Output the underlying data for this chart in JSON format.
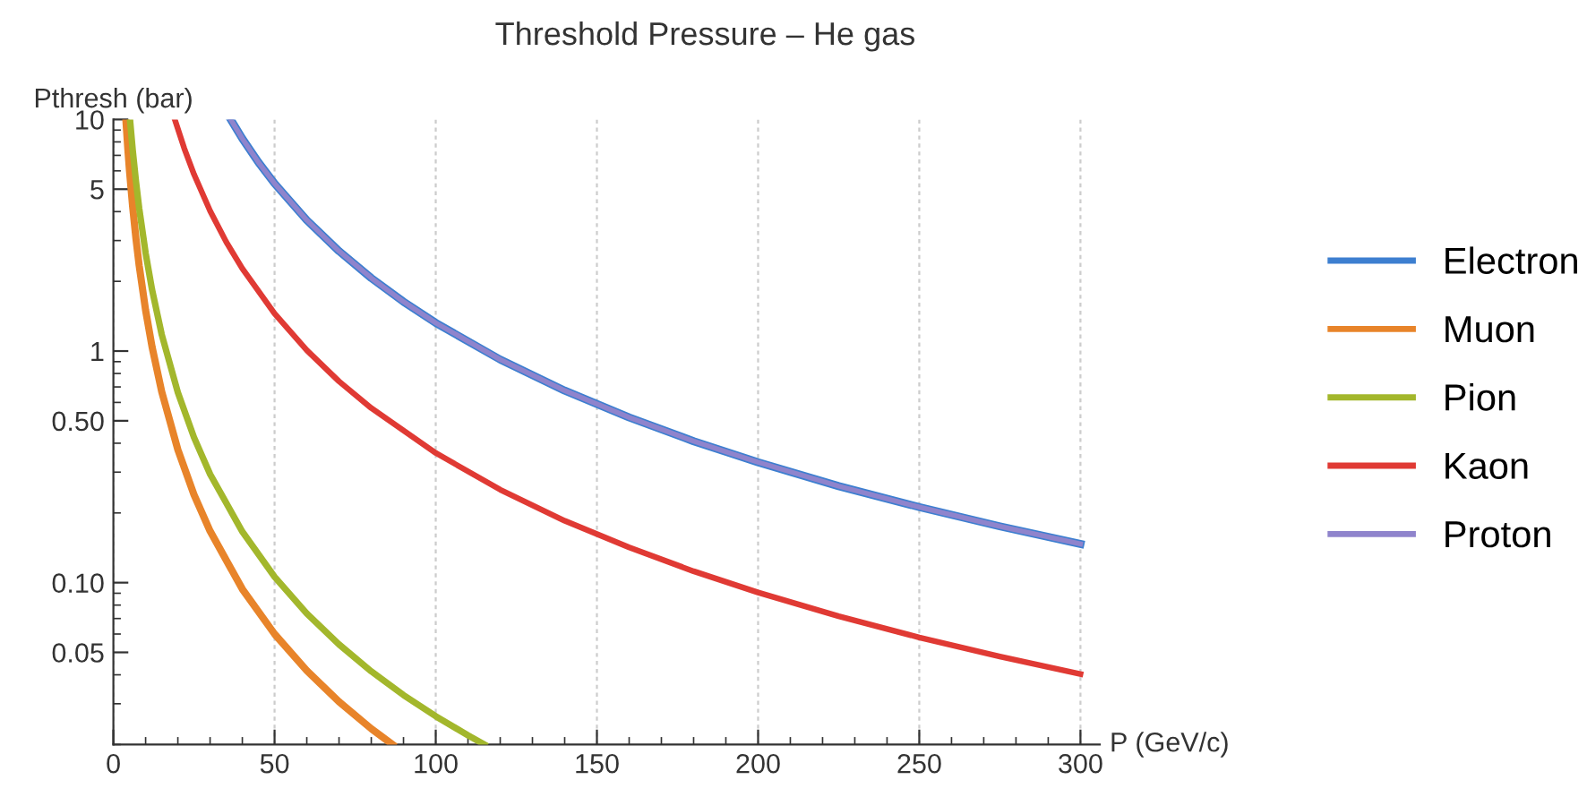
{
  "chart_data": {
    "type": "line",
    "title": "Threshold Pressure – He gas",
    "xlabel": "P (GeV/c)",
    "ylabel": "Pthresh (bar)",
    "log": "y",
    "grid": "x",
    "legend": "right",
    "marker": "none",
    "line_style": "solid",
    "xlim": [
      0,
      306
    ],
    "ylim": [
      0.02,
      10
    ],
    "xticks": [
      0,
      {
        "value": 10,
        "label": null
      },
      {
        "value": 20,
        "label": null
      },
      {
        "value": 30,
        "label": null
      },
      {
        "value": 40,
        "label": null
      },
      50,
      {
        "value": 60,
        "label": null
      },
      {
        "value": 70,
        "label": null
      },
      {
        "value": 80,
        "label": null
      },
      {
        "value": 90,
        "label": null
      },
      100,
      {
        "value": 110,
        "label": null
      },
      {
        "value": 120,
        "label": null
      },
      {
        "value": 130,
        "label": null
      },
      {
        "value": 140,
        "label": null
      },
      150,
      {
        "value": 160,
        "label": null
      },
      {
        "value": 170,
        "label": null
      },
      {
        "value": 180,
        "label": null
      },
      {
        "value": 190,
        "label": null
      },
      200,
      {
        "value": 210,
        "label": null
      },
      {
        "value": 220,
        "label": null
      },
      {
        "value": 230,
        "label": null
      },
      {
        "value": 240,
        "label": null
      },
      250,
      {
        "value": 260,
        "label": null
      },
      {
        "value": 270,
        "label": null
      },
      {
        "value": 280,
        "label": null
      },
      {
        "value": 290,
        "label": null
      },
      300
    ],
    "yticks": [
      {
        "value": 0.02,
        "label": null
      },
      {
        "value": 0.03,
        "label": null
      },
      {
        "value": 0.04,
        "label": null
      },
      {
        "value": 0.05,
        "label": "0.05"
      },
      {
        "value": 0.06,
        "label": null
      },
      {
        "value": 0.07,
        "label": null
      },
      {
        "value": 0.08,
        "label": null
      },
      {
        "value": 0.09,
        "label": null
      },
      {
        "value": 0.1,
        "label": "0.10"
      },
      {
        "value": 0.2,
        "label": null
      },
      {
        "value": 0.3,
        "label": null
      },
      {
        "value": 0.4,
        "label": null
      },
      {
        "value": 0.5,
        "label": "0.50"
      },
      {
        "value": 0.6,
        "label": null
      },
      {
        "value": 0.7,
        "label": null
      },
      {
        "value": 0.8,
        "label": null
      },
      {
        "value": 0.9,
        "label": null
      },
      1,
      {
        "value": 2,
        "label": null
      },
      {
        "value": 3,
        "label": null
      },
      {
        "value": 4,
        "label": null
      },
      5,
      {
        "value": 6,
        "label": null
      },
      {
        "value": 7,
        "label": null
      },
      {
        "value": 8,
        "label": null
      },
      {
        "value": 9,
        "label": null
      },
      10
    ],
    "series": [
      {
        "name": "Electron",
        "color": "#3d7fd0",
        "x": [
          36.4,
          40,
          45,
          50,
          60,
          70,
          80,
          90,
          100,
          120,
          140,
          160,
          180,
          200,
          225,
          250,
          275,
          300
        ],
        "values": [
          10.0,
          8.27,
          6.53,
          5.29,
          3.675,
          2.7,
          2.067,
          1.633,
          1.323,
          0.919,
          0.675,
          0.517,
          0.408,
          0.331,
          0.261,
          0.212,
          0.175,
          0.147
        ]
      },
      {
        "name": "Muon",
        "color": "#e8842a",
        "x": [
          3.87,
          4.5,
          5,
          6,
          7,
          8,
          10,
          12,
          15,
          20,
          25,
          30,
          40,
          50,
          60,
          70,
          80,
          86.6
        ],
        "values": [
          10.0,
          7.41,
          6.0,
          4.17,
          3.06,
          2.34,
          1.5,
          1.042,
          0.667,
          0.375,
          0.24,
          0.167,
          0.0938,
          0.06,
          0.0417,
          0.0306,
          0.0234,
          0.02
        ]
      },
      {
        "name": "Pion",
        "color": "#a3b72c",
        "x": [
          5.15,
          6,
          7,
          8,
          10,
          12,
          15,
          20,
          25,
          30,
          40,
          50,
          60,
          70,
          80,
          90,
          100,
          110,
          115.1
        ],
        "values": [
          10.0,
          7.36,
          5.41,
          4.14,
          2.65,
          1.84,
          1.178,
          0.663,
          0.424,
          0.294,
          0.166,
          0.106,
          0.0736,
          0.0541,
          0.0414,
          0.0327,
          0.0265,
          0.0219,
          0.02
        ]
      },
      {
        "name": "Kaon",
        "color": "#e03a34",
        "x": [
          19.05,
          22,
          25,
          30,
          35,
          40,
          50,
          60,
          70,
          80,
          100,
          120,
          140,
          160,
          180,
          200,
          225,
          250,
          275,
          300
        ],
        "values": [
          10.0,
          7.49,
          5.8,
          4.03,
          2.96,
          2.27,
          1.451,
          1.008,
          0.74,
          0.567,
          0.363,
          0.252,
          0.185,
          0.142,
          0.112,
          0.0907,
          0.0716,
          0.058,
          0.048,
          0.0403
        ]
      },
      {
        "name": "Proton",
        "color": "#8f84cc",
        "x": [
          36.4,
          40,
          45,
          50,
          60,
          70,
          80,
          90,
          100,
          120,
          140,
          160,
          180,
          200,
          225,
          250,
          275,
          300
        ],
        "values": [
          10.0,
          8.27,
          6.53,
          5.29,
          3.675,
          2.7,
          2.067,
          1.633,
          1.323,
          0.919,
          0.675,
          0.517,
          0.408,
          0.331,
          0.261,
          0.212,
          0.175,
          0.147
        ]
      }
    ]
  }
}
